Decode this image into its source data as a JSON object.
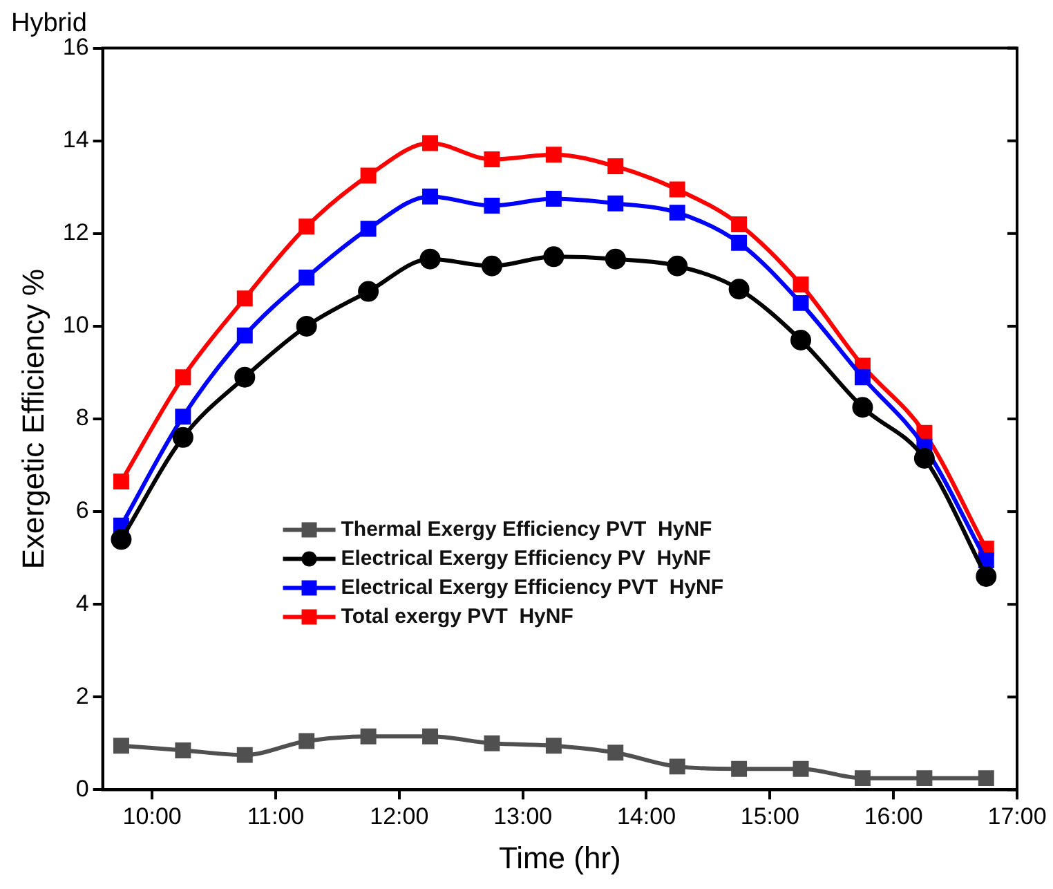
{
  "chart_data": {
    "type": "line",
    "title": "Hybrid",
    "xlabel": "Time (hr)",
    "ylabel": "Exergetic Efficiency %",
    "x": [
      9.75,
      10.25,
      10.75,
      11.25,
      11.75,
      12.25,
      12.75,
      13.25,
      13.75,
      14.25,
      14.75,
      15.25,
      15.75,
      16.25,
      16.75
    ],
    "xlim": [
      9.6,
      17
    ],
    "xticks": [
      {
        "value": 10,
        "label": "10:00"
      },
      {
        "value": 11,
        "label": "11:00"
      },
      {
        "value": 12,
        "label": "12:00"
      },
      {
        "value": 13,
        "label": "13:00"
      },
      {
        "value": 14,
        "label": "14:00"
      },
      {
        "value": 15,
        "label": "15:00"
      },
      {
        "value": 16,
        "label": "16:00"
      },
      {
        "value": 17,
        "label": "17:00"
      }
    ],
    "ylim": [
      0,
      16
    ],
    "yticks": [
      0,
      2,
      4,
      6,
      8,
      10,
      12,
      14,
      16
    ],
    "grid": false,
    "legend": "center",
    "series": [
      {
        "name": "Thermal Exergy Efficiency PVT  HyNF",
        "color": "#505050",
        "marker": "square",
        "values": [
          0.95,
          0.85,
          0.75,
          1.05,
          1.15,
          1.15,
          1.0,
          0.95,
          0.8,
          0.5,
          0.45,
          0.45,
          0.25,
          0.25,
          0.25
        ]
      },
      {
        "name": "Electrical Exergy Efficiency PV  HyNF",
        "color": "#000000",
        "marker": "circle",
        "values": [
          5.4,
          7.6,
          8.9,
          10.0,
          10.75,
          11.45,
          11.3,
          11.5,
          11.45,
          11.3,
          10.8,
          9.7,
          8.25,
          7.15,
          4.6
        ]
      },
      {
        "name": "Electrical Exergy Efficiency PVT  HyNF",
        "color": "#0000ff",
        "marker": "square",
        "values": [
          5.7,
          8.05,
          9.8,
          11.05,
          12.1,
          12.8,
          12.6,
          12.75,
          12.65,
          12.45,
          11.8,
          10.5,
          8.9,
          7.4,
          4.95
        ]
      },
      {
        "name": "Total exergy PVT  HyNF",
        "color": "#ff0000",
        "marker": "square",
        "values": [
          6.65,
          8.9,
          10.6,
          12.15,
          13.25,
          13.95,
          13.6,
          13.7,
          13.45,
          12.95,
          12.2,
          10.9,
          9.15,
          7.7,
          5.2
        ]
      }
    ]
  }
}
